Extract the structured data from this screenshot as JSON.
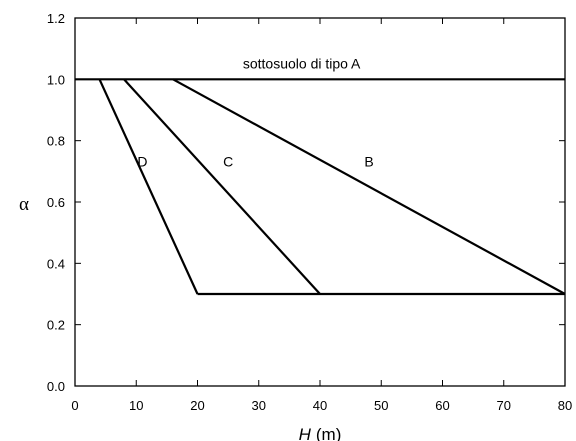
{
  "chart_data": {
    "type": "line",
    "xlabel": "H",
    "xlabel_unit": "(m)",
    "ylabel": "α",
    "xlim": [
      0,
      80
    ],
    "ylim": [
      0.0,
      1.2
    ],
    "xticks": [
      "0",
      "10",
      "20",
      "30",
      "40",
      "50",
      "60",
      "70",
      "80"
    ],
    "xtick_values": [
      0,
      10,
      20,
      30,
      40,
      50,
      60,
      70,
      80
    ],
    "yticks": [
      "0.0",
      "0.2",
      "0.4",
      "0.6",
      "0.8",
      "1.0",
      "1.2"
    ],
    "ytick_values": [
      0.0,
      0.2,
      0.4,
      0.6,
      0.8,
      1.0,
      1.2
    ],
    "grid": false,
    "series": [
      {
        "name": "sottosuolo di tipo A",
        "x": [
          0,
          80
        ],
        "y": [
          1.0,
          1.0
        ],
        "label_at": [
          37,
          1.035
        ]
      },
      {
        "name": "B",
        "x": [
          16,
          80
        ],
        "y": [
          1.0,
          0.3
        ],
        "label_at": [
          48,
          0.715
        ]
      },
      {
        "name": "C",
        "x": [
          8,
          40
        ],
        "y": [
          1.0,
          0.3
        ],
        "label_at": [
          25,
          0.715
        ]
      },
      {
        "name": "D",
        "x": [
          4,
          20
        ],
        "y": [
          1.0,
          0.3
        ],
        "label_at": [
          11,
          0.715
        ]
      },
      {
        "name": "",
        "x": [
          20,
          80
        ],
        "y": [
          0.3,
          0.3
        ]
      }
    ]
  }
}
